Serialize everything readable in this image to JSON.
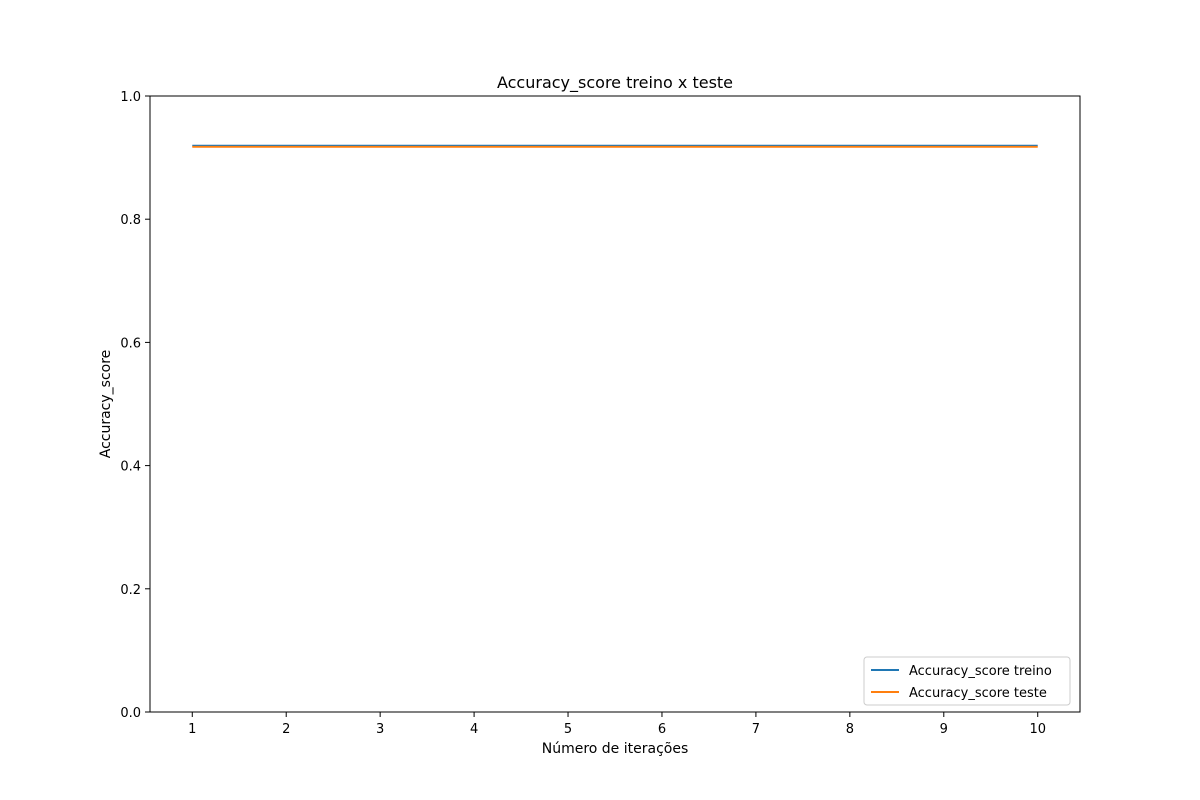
{
  "chart_data": {
    "type": "line",
    "title": "Accuracy_score treino x teste",
    "xlabel": "Número de iterações",
    "ylabel": "Accuracy_score",
    "x": [
      1,
      2,
      3,
      4,
      5,
      6,
      7,
      8,
      9,
      10
    ],
    "xticks": [
      "1",
      "2",
      "3",
      "4",
      "5",
      "6",
      "7",
      "8",
      "9",
      "10"
    ],
    "yticks": [
      "0.0",
      "0.2",
      "0.4",
      "0.6",
      "0.8",
      "1.0"
    ],
    "xlim": [
      0.55,
      10.45
    ],
    "ylim": [
      0,
      1
    ],
    "grid": false,
    "legend_position": "lower right",
    "series": [
      {
        "name": "Accuracy_score treino",
        "color": "#1f77b4",
        "values": [
          0.9195,
          0.9195,
          0.9195,
          0.9195,
          0.9195,
          0.9195,
          0.9195,
          0.9195,
          0.9195,
          0.9195
        ]
      },
      {
        "name": "Accuracy_score teste",
        "color": "#ff7f0e",
        "values": [
          0.9175,
          0.9175,
          0.9175,
          0.9175,
          0.9175,
          0.9175,
          0.9175,
          0.9175,
          0.9175,
          0.9175
        ]
      }
    ]
  }
}
